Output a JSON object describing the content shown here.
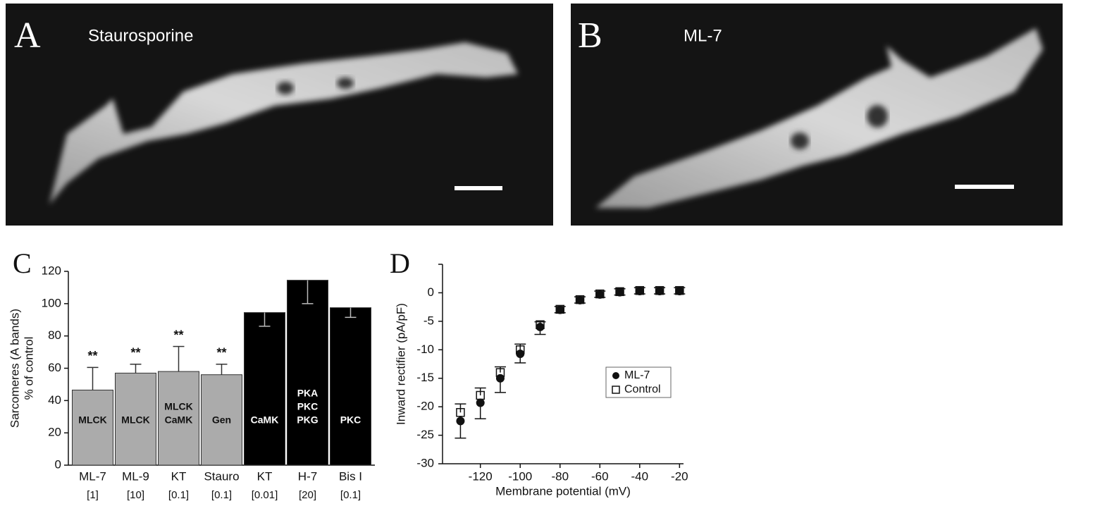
{
  "micrographs": [
    {
      "label": "A",
      "caption": "Staurosporine"
    },
    {
      "label": "B",
      "caption": "ML-7"
    }
  ],
  "chart_data": [
    {
      "type": "bar",
      "label": "C",
      "y_label": [
        "Sarcomeres (A bands)",
        "% of control"
      ],
      "categories": [
        "ML-7",
        "ML-9",
        "KT",
        "Stauro",
        "KT",
        "H-7",
        "Bis I"
      ],
      "doses": [
        "[1]",
        "[10]",
        "[0.1]",
        "[0.1]",
        "[0.01]",
        "[20]",
        "[0.1]"
      ],
      "values": [
        46.5,
        57,
        58,
        56,
        94.5,
        114.5,
        97.5
      ],
      "errors": [
        14,
        5.5,
        15.5,
        6.5,
        8.5,
        14.5,
        6
      ],
      "error_direction": [
        "up",
        "up",
        "up",
        "up",
        "down",
        "down",
        "down"
      ],
      "colors": [
        "#ababab",
        "#ababab",
        "#ababab",
        "#ababab",
        "#000000",
        "#000000",
        "#000000"
      ],
      "label_colors": [
        "#111111",
        "#111111",
        "#111111",
        "#111111",
        "#ffffff",
        "#ffffff",
        "#ffffff"
      ],
      "bar_labels": [
        [
          "MLCK"
        ],
        [
          "MLCK"
        ],
        [
          "MLCK",
          "CaMK"
        ],
        [
          "Gen"
        ],
        [
          "CaMK"
        ],
        [
          "PKA",
          "PKC",
          "PKG"
        ],
        [
          "PKC"
        ]
      ],
      "significance": [
        "**",
        "**",
        "**",
        "**",
        null,
        null,
        null
      ],
      "ylim": [
        0,
        120
      ],
      "yticks": [
        0,
        20,
        40,
        60,
        80,
        100,
        120
      ]
    },
    {
      "type": "scatter",
      "label": "D",
      "y_label": "Inward rectifier (pA/pF)",
      "x_label": "Membrane potential (mV)",
      "x": [
        -130,
        -120,
        -110,
        -100,
        -90,
        -80,
        -70,
        -60,
        -50,
        -40,
        -30,
        -20
      ],
      "series": [
        {
          "name": "ML-7",
          "marker": "filled",
          "error_direction": "down",
          "values": [
            -22.5,
            -19.3,
            -15,
            -10.7,
            -6,
            -3,
            -1.3,
            -0.3,
            0.1,
            0.3,
            0.3,
            0.3
          ],
          "errors": [
            3,
            2.8,
            2.5,
            1.6,
            1.3,
            0.5,
            0.5,
            0.5,
            0.5,
            0.5,
            0.5,
            0.5
          ]
        },
        {
          "name": "Control",
          "marker": "open",
          "error_direction": "up",
          "values": [
            -21,
            -18,
            -14,
            -10,
            -5.6,
            -2.9,
            -1.2,
            -0.2,
            0.2,
            0.4,
            0.4,
            0.4
          ],
          "errors": [
            1.5,
            1.3,
            1,
            1,
            0.5,
            0.5,
            0.5,
            0.5,
            0.5,
            0.5,
            0.5,
            0.5
          ]
        }
      ],
      "xlim": [
        -139,
        -18
      ],
      "ylim": [
        -30,
        5
      ],
      "xticks": [
        -120,
        -100,
        -80,
        -60,
        -40,
        -20
      ],
      "yticks": [
        -30,
        -25,
        -20,
        -15,
        -10,
        -5,
        0,
        5
      ],
      "ytick_labels_shown": [
        true,
        true,
        true,
        true,
        true,
        true,
        true,
        false
      ]
    }
  ]
}
